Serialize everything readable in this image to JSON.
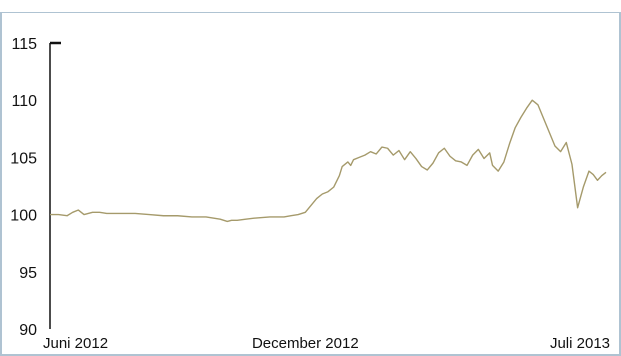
{
  "chart_data": {
    "type": "line",
    "title": "",
    "xlabel": "",
    "ylabel": "",
    "ylim": [
      90,
      115
    ],
    "y_ticks": [
      90,
      95,
      100,
      105,
      110,
      115
    ],
    "x_tick_labels": [
      {
        "label": "Juni 2012",
        "x": 0
      },
      {
        "label": "December 2012",
        "x": 180
      },
      {
        "label": "Juli 2013",
        "x": 392
      }
    ],
    "xlim": [
      0,
      392
    ],
    "grid": false,
    "colors": {
      "series": "#A59A6B",
      "axis": "#111111",
      "frame": "#AFC3D2"
    },
    "series": [
      {
        "x": [
          0,
          6,
          12,
          16,
          20,
          22,
          24,
          27,
          30,
          35,
          40,
          50,
          60,
          70,
          80,
          90,
          100,
          110,
          120,
          125,
          128,
          132,
          138,
          145,
          155,
          165,
          170,
          175,
          180,
          184,
          188,
          192,
          196,
          200,
          204,
          206,
          210,
          212,
          214,
          218,
          222,
          226,
          230,
          234,
          238,
          242,
          246,
          250,
          254,
          258,
          262,
          266,
          270,
          274,
          278,
          282,
          286,
          290,
          294,
          298,
          302,
          306,
          310,
          312,
          316,
          320,
          324,
          328,
          332,
          336,
          340,
          344,
          348,
          352,
          356,
          360,
          364,
          368,
          372,
          376,
          380,
          383,
          386,
          389,
          392
        ],
        "y": [
          100.0,
          100.0,
          99.9,
          100.2,
          100.4,
          100.2,
          100.0,
          100.1,
          100.2,
          100.2,
          100.1,
          100.1,
          100.1,
          100.0,
          99.9,
          99.9,
          99.8,
          99.8,
          99.6,
          99.4,
          99.5,
          99.5,
          99.6,
          99.7,
          99.8,
          99.8,
          99.9,
          100.0,
          100.2,
          100.8,
          101.4,
          101.8,
          102.0,
          102.4,
          103.4,
          104.2,
          104.6,
          104.3,
          104.8,
          105.0,
          105.2,
          105.5,
          105.3,
          105.9,
          105.8,
          105.2,
          105.6,
          104.8,
          105.5,
          104.9,
          104.2,
          103.9,
          104.5,
          105.4,
          105.8,
          105.1,
          104.7,
          104.6,
          104.3,
          105.2,
          105.7,
          104.9,
          105.4,
          104.3,
          103.8,
          104.6,
          106.2,
          107.6,
          108.5,
          109.3,
          110.0,
          109.6,
          108.4,
          107.2,
          106.0,
          105.5,
          106.3,
          104.4,
          100.6,
          102.4,
          103.8,
          103.5,
          103.0,
          103.4,
          103.7
        ]
      }
    ]
  }
}
